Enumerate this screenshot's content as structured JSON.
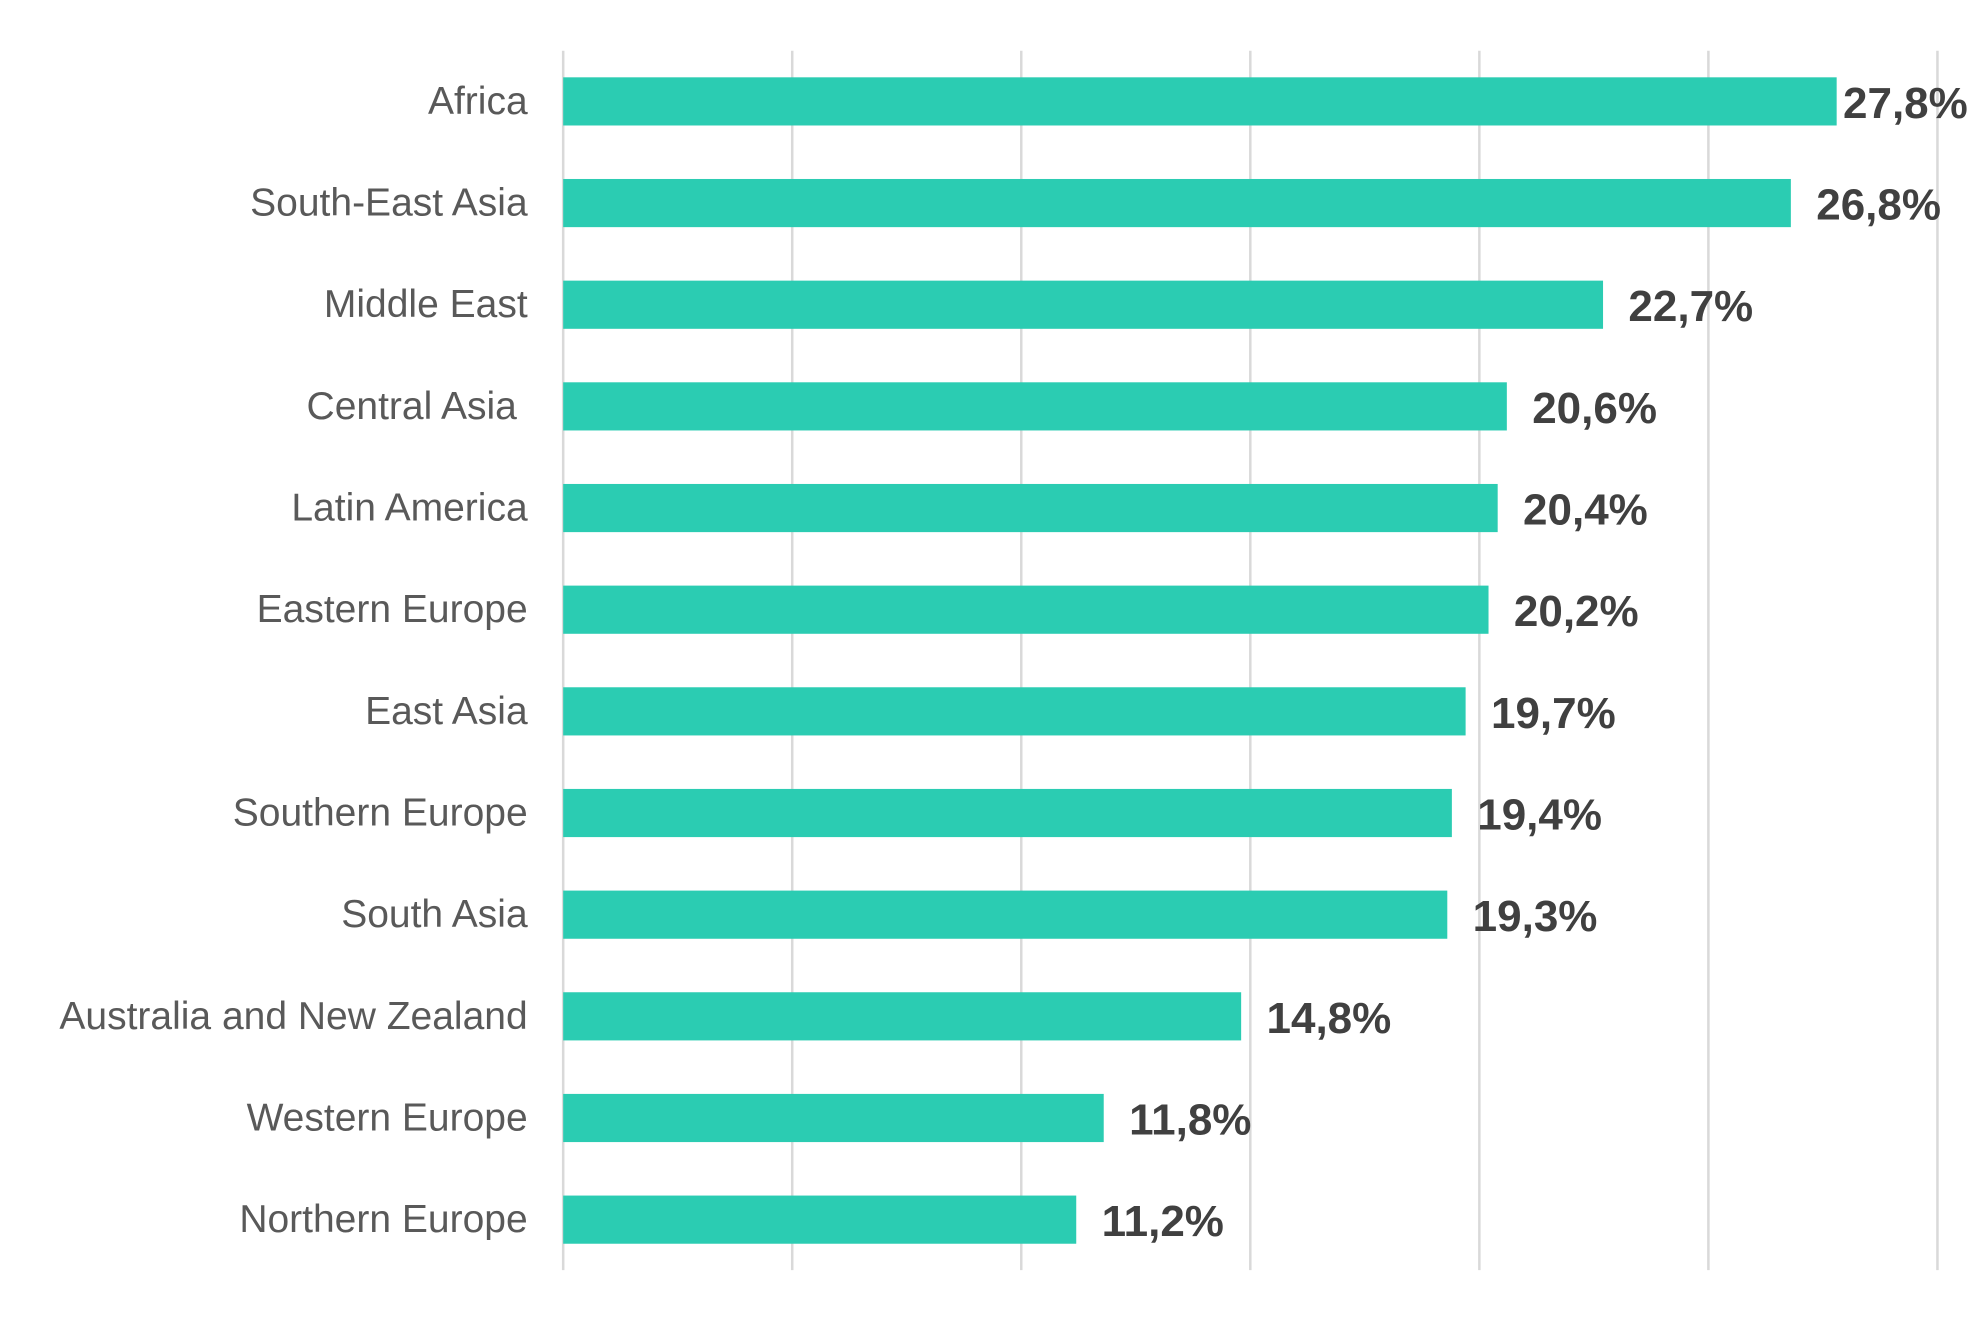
{
  "chart_data": {
    "type": "bar",
    "orientation": "horizontal",
    "categories": [
      "Africa",
      "South-East Asia",
      "Middle East",
      "Central Asia ",
      "Latin America",
      "Eastern Europe",
      "East Asia",
      "Southern Europe",
      "South Asia",
      "Australia and New Zealand",
      "Western Europe",
      "Northern Europe"
    ],
    "values": [
      27.8,
      26.8,
      22.7,
      20.6,
      20.4,
      20.2,
      19.7,
      19.4,
      19.3,
      14.8,
      11.8,
      11.2
    ],
    "value_labels": [
      "27,8%",
      "26,8%",
      "22,7%",
      "20,6%",
      "20,4%",
      "20,2%",
      "19,7%",
      "19,4%",
      "19,3%",
      "14,8%",
      "11,8%",
      "11,2%"
    ],
    "xlim": [
      0,
      30
    ],
    "grid_step": 5,
    "grid": true,
    "title": "",
    "xlabel": "",
    "ylabel": "",
    "colors": {
      "bar": "#2bccb2",
      "grid": "#d9d9d9",
      "category_text": "#595959",
      "value_text": "#404040"
    }
  }
}
